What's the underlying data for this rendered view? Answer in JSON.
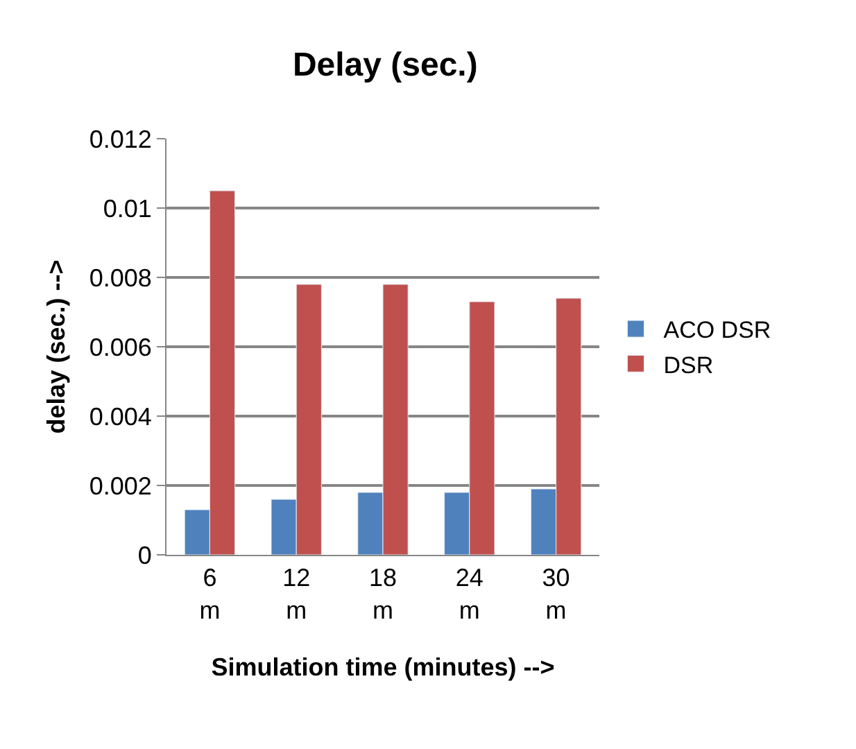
{
  "chart_data": {
    "type": "bar",
    "title": "Delay (sec.)",
    "xlabel": "Simulation time (minutes) -->",
    "ylabel": "delay (sec.) -->",
    "categories": [
      "6 m",
      "12 m",
      "18 m",
      "24 m",
      "30 m"
    ],
    "series": [
      {
        "name": "ACO DSR",
        "color": "#4f81bd",
        "values": [
          0.0013,
          0.0016,
          0.0018,
          0.0018,
          0.0019
        ]
      },
      {
        "name": "DSR",
        "color": "#c0504d",
        "values": [
          0.0105,
          0.0078,
          0.0078,
          0.0073,
          0.0074
        ]
      }
    ],
    "ylim": [
      0,
      0.012
    ],
    "yticks": [
      0,
      0.002,
      0.004,
      0.006,
      0.008,
      0.01,
      0.012
    ],
    "grid": "y",
    "legend": "right"
  }
}
